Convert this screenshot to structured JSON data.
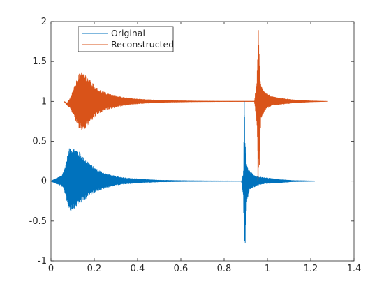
{
  "chart_data": {
    "type": "line",
    "title": "",
    "xlabel": "",
    "ylabel": "",
    "xlim": [
      0,
      1.4
    ],
    "ylim": [
      -1,
      2
    ],
    "xticks": [
      0,
      0.2,
      0.4,
      0.6,
      0.8,
      1,
      1.2,
      1.4
    ],
    "xtick_labels": [
      "0",
      "0.2",
      "0.4",
      "0.6",
      "0.8",
      "1",
      "1.2",
      "1.4"
    ],
    "yticks": [
      -1,
      -0.5,
      0,
      0.5,
      1,
      1.5,
      2
    ],
    "ytick_labels": [
      "-1",
      "-0.5",
      "0",
      "0.5",
      "1",
      "1.5",
      "2"
    ],
    "grid": false,
    "legend_position": "top-left",
    "series": [
      {
        "name": "Original",
        "color": "#0072BD",
        "offset": 0,
        "envelope": [
          {
            "x": 0.0,
            "upper": 0.0,
            "lower": 0.0
          },
          {
            "x": 0.02,
            "upper": 0.03,
            "lower": -0.03
          },
          {
            "x": 0.05,
            "upper": 0.07,
            "lower": -0.06
          },
          {
            "x": 0.065,
            "upper": 0.18,
            "lower": -0.15
          },
          {
            "x": 0.08,
            "upper": 0.38,
            "lower": -0.33
          },
          {
            "x": 0.09,
            "upper": 0.44,
            "lower": -0.38
          },
          {
            "x": 0.12,
            "upper": 0.4,
            "lower": -0.32
          },
          {
            "x": 0.16,
            "upper": 0.28,
            "lower": -0.22
          },
          {
            "x": 0.2,
            "upper": 0.17,
            "lower": -0.14
          },
          {
            "x": 0.25,
            "upper": 0.1,
            "lower": -0.09
          },
          {
            "x": 0.3,
            "upper": 0.06,
            "lower": -0.05
          },
          {
            "x": 0.35,
            "upper": 0.04,
            "lower": -0.035
          },
          {
            "x": 0.42,
            "upper": 0.025,
            "lower": -0.02
          },
          {
            "x": 0.5,
            "upper": 0.012,
            "lower": -0.01
          },
          {
            "x": 0.62,
            "upper": 0.006,
            "lower": -0.005
          },
          {
            "x": 0.75,
            "upper": 0.003,
            "lower": -0.003
          },
          {
            "x": 0.88,
            "upper": 0.002,
            "lower": -0.002
          },
          {
            "x": 0.889,
            "upper": 0.1,
            "lower": -0.2
          },
          {
            "x": 0.893,
            "upper": 1.0,
            "lower": -1.0
          },
          {
            "x": 0.897,
            "upper": 0.55,
            "lower": -0.8
          },
          {
            "x": 0.905,
            "upper": 0.2,
            "lower": -0.25
          },
          {
            "x": 0.92,
            "upper": 0.12,
            "lower": -0.1
          },
          {
            "x": 0.95,
            "upper": 0.06,
            "lower": -0.06
          },
          {
            "x": 0.97,
            "upper": 0.05,
            "lower": -0.04
          },
          {
            "x": 1.0,
            "upper": 0.04,
            "lower": -0.03
          },
          {
            "x": 1.06,
            "upper": 0.02,
            "lower": -0.02
          },
          {
            "x": 1.12,
            "upper": 0.008,
            "lower": -0.007
          },
          {
            "x": 1.22,
            "upper": 0.002,
            "lower": -0.002
          }
        ]
      },
      {
        "name": "Reconstructed",
        "color": "#D95319",
        "offset": 1,
        "envelope": [
          {
            "x": 0.06,
            "upper": 1.0,
            "lower": 1.0
          },
          {
            "x": 0.075,
            "upper": 0.98,
            "lower": 0.95
          },
          {
            "x": 0.09,
            "upper": 1.05,
            "lower": 0.91
          },
          {
            "x": 0.11,
            "upper": 1.2,
            "lower": 0.78
          },
          {
            "x": 0.13,
            "upper": 1.36,
            "lower": 0.65
          },
          {
            "x": 0.15,
            "upper": 1.37,
            "lower": 0.63
          },
          {
            "x": 0.18,
            "upper": 1.27,
            "lower": 0.72
          },
          {
            "x": 0.21,
            "upper": 1.17,
            "lower": 0.83
          },
          {
            "x": 0.26,
            "upper": 1.1,
            "lower": 0.9
          },
          {
            "x": 0.32,
            "upper": 1.06,
            "lower": 0.94
          },
          {
            "x": 0.38,
            "upper": 1.035,
            "lower": 0.965
          },
          {
            "x": 0.46,
            "upper": 1.02,
            "lower": 0.98
          },
          {
            "x": 0.55,
            "upper": 1.01,
            "lower": 0.99
          },
          {
            "x": 0.68,
            "upper": 1.004,
            "lower": 0.996
          },
          {
            "x": 0.8,
            "upper": 1.002,
            "lower": 0.998
          },
          {
            "x": 0.94,
            "upper": 1.002,
            "lower": 0.998
          },
          {
            "x": 0.952,
            "upper": 1.3,
            "lower": 0.7
          },
          {
            "x": 0.957,
            "upper": 2.0,
            "lower": 0.0
          },
          {
            "x": 0.962,
            "upper": 1.6,
            "lower": 0.15
          },
          {
            "x": 0.97,
            "upper": 1.2,
            "lower": 0.78
          },
          {
            "x": 0.99,
            "upper": 1.12,
            "lower": 0.9
          },
          {
            "x": 1.02,
            "upper": 1.06,
            "lower": 0.95
          },
          {
            "x": 1.06,
            "upper": 1.04,
            "lower": 0.96
          },
          {
            "x": 1.12,
            "upper": 1.02,
            "lower": 0.98
          },
          {
            "x": 1.2,
            "upper": 1.006,
            "lower": 0.994
          },
          {
            "x": 1.28,
            "upper": 1.0,
            "lower": 1.0
          }
        ]
      }
    ],
    "annotations": [
      {
        "series": "Original",
        "x": 0.893,
        "y_from": 0,
        "y_to": 1
      },
      {
        "series": "Reconstructed",
        "x": 0.956,
        "y_from": 0,
        "y_to": 1
      }
    ]
  }
}
